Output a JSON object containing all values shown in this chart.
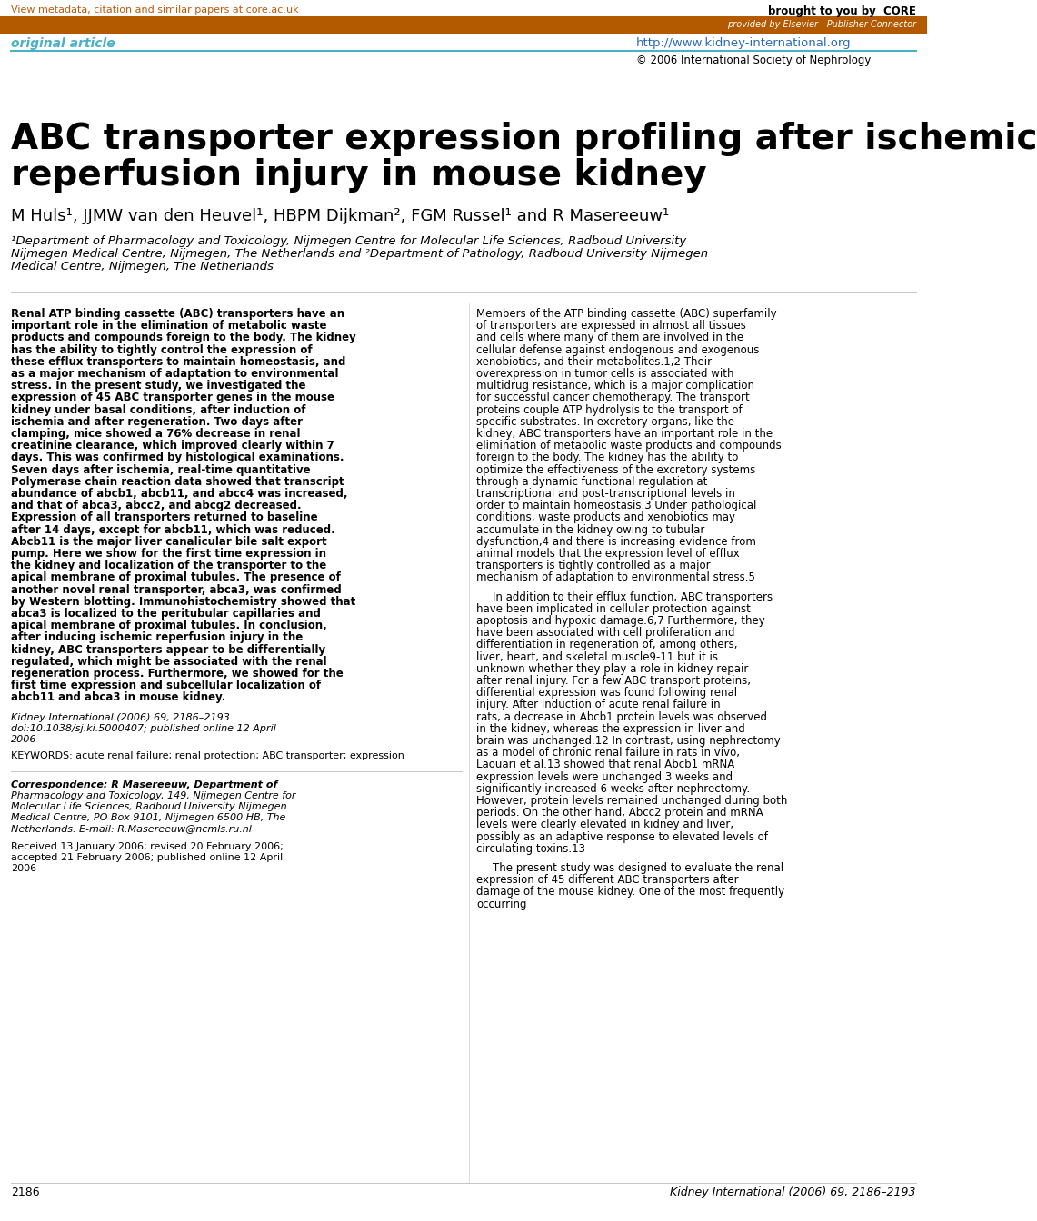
{
  "page_bg": "#ffffff",
  "header_bar_color": "#b35a00",
  "top_link_text": "View metadata, citation and similar papers at core.ac.uk",
  "top_link_color": "#c0580a",
  "core_text": "brought to you by  CORE",
  "elsevier_text": "provided by Elsevier - Publisher Connector",
  "journal_url": "http://www.kidney-international.org",
  "journal_url_color": "#2a6ab5",
  "copyright_text": "© 2006 International Society of Nephrology",
  "original_article_text": "original article",
  "original_article_color": "#4ab0c8",
  "divider_color": "#4ab0c8",
  "title_line1": "ABC transporter expression profiling after ischemic",
  "title_line2": "reperfusion injury in mouse kidney",
  "title_color": "#000000",
  "title_fontsize": 28,
  "authors": "M Huls¹, JJMW van den Heuvel¹, HBPM Dijkman², FGM Russel¹ and R Masereeuw¹",
  "authors_fontsize": 13,
  "affiliation": "¹Department of Pharmacology and Toxicology, Nijmegen Centre for Molecular Life Sciences, Radboud University Nijmegen Medical Centre, Nijmegen, The Netherlands and ²Department of Pathology, Radboud University Nijmegen Medical Centre, Nijmegen, The Netherlands",
  "affiliation_fontsize": 9.5,
  "left_col_abstract": "Renal ATP binding cassette (ABC) transporters have an important role in the elimination of metabolic waste products and compounds foreign to the body. The kidney has the ability to tightly control the expression of these efflux transporters to maintain homeostasis, and as a major mechanism of adaptation to environmental stress. In the present study, we investigated the expression of 45 ABC transporter genes in the mouse kidney under basal conditions, after induction of ischemia and after regeneration. Two days after clamping, mice showed a 76% decrease in renal creatinine clearance, which improved clearly within 7 days. This was confirmed by histological examinations. Seven days after ischemia, real-time quantitative Polymerase chain reaction data showed that transcript abundance of abcb1, abcb11, and abcc4 was increased, and that of abca3, abcc2, and abcg2 decreased. Expression of all transporters returned to baseline after 14 days, except for abcb11, which was reduced. Abcb11 is the major liver canalicular bile salt export pump. Here we show for the first time expression in the kidney and localization of the transporter to the apical membrane of proximal tubules. The presence of another novel renal transporter, abca3, was confirmed by Western blotting. Immunohistochemistry showed that abca3 is localized to the peritubular capillaries and apical membrane of proximal tubules. In conclusion, after inducing ischemic reperfusion injury in the kidney, ABC transporters appear to be differentially regulated, which might be associated with the renal regeneration process. Furthermore, we showed for the first time expression and subcellular localization of abcb11 and abca3 in mouse kidney.",
  "left_col_citation": "Kidney International (2006) 69, 2186–2193. doi:10.1038/sj.ki.5000407; published online 12 April 2006",
  "left_col_keywords": "KEYWORDS: acute renal failure; renal protection; ABC transporter; expression",
  "correspondence_text": "Correspondence: R Masereeuw, Department of Pharmacology and Toxicology, 149, Nijmegen Centre for Molecular Life Sciences, Radboud University Nijmegen Medical Centre, PO Box 9101, Nijmegen 6500 HB, The Netherlands. E-mail: R.Masereeuw@ncmls.ru.nl",
  "received_text": "Received 13 January 2006; revised 20 February 2006; accepted 21 February 2006; published online 12 April 2006",
  "page_number_left": "2186",
  "page_number_right": "Kidney International (2006) 69, 2186–2193",
  "right_col_para1": "Members of the ATP binding cassette (ABC) superfamily of transporters are expressed in almost all tissues and cells where many of them are involved in the cellular defense against endogenous and exogenous xenobiotics, and their metabolites.1,2 Their overexpression in tumor cells is associated with multidrug resistance, which is a major complication for successful cancer chemotherapy. The transport proteins couple ATP hydrolysis to the transport of specific substrates. In excretory organs, like the kidney, ABC transporters have an important role in the elimination of metabolic waste products and compounds foreign to the body. The kidney has the ability to optimize the effectiveness of the excretory systems through a dynamic functional regulation at transcriptional and post-transcriptional levels in order to maintain homeostasis.3 Under pathological conditions, waste products and xenobiotics may accumulate in the kidney owing to tubular dysfunction,4 and there is increasing evidence from animal models that the expression level of efflux transporters is tightly controlled as a major mechanism of adaptation to environmental stress.5",
  "right_col_para2": "In addition to their efflux function, ABC transporters have been implicated in cellular protection against apoptosis and hypoxic damage.6,7 Furthermore, they have been associated with cell proliferation and differentiation in regeneration of, among others, liver, heart, and skeletal muscle9-11 but it is unknown whether they play a role in kidney repair after renal injury. For a few ABC transport proteins, differential expression was found following renal injury. After induction of acute renal failure in rats, a decrease in Abcb1 protein levels was observed in the kidney, whereas the expression in liver and brain was unchanged.12 In contrast, using nephrectomy as a model of chronic renal failure in rats in vivo, Laouari et al.13 showed that renal Abcb1 mRNA expression levels were unchanged 3 weeks and significantly increased 6 weeks after nephrectomy. However, protein levels remained unchanged during both periods. On the other hand, Abcc2 protein and mRNA levels were clearly elevated in kidney and liver, possibly as an adaptive response to elevated levels of circulating toxins.13",
  "right_col_para3": "The present study was designed to evaluate the renal expression of 45 different ABC transporters after damage of the mouse kidney. One of the most frequently occurring"
}
